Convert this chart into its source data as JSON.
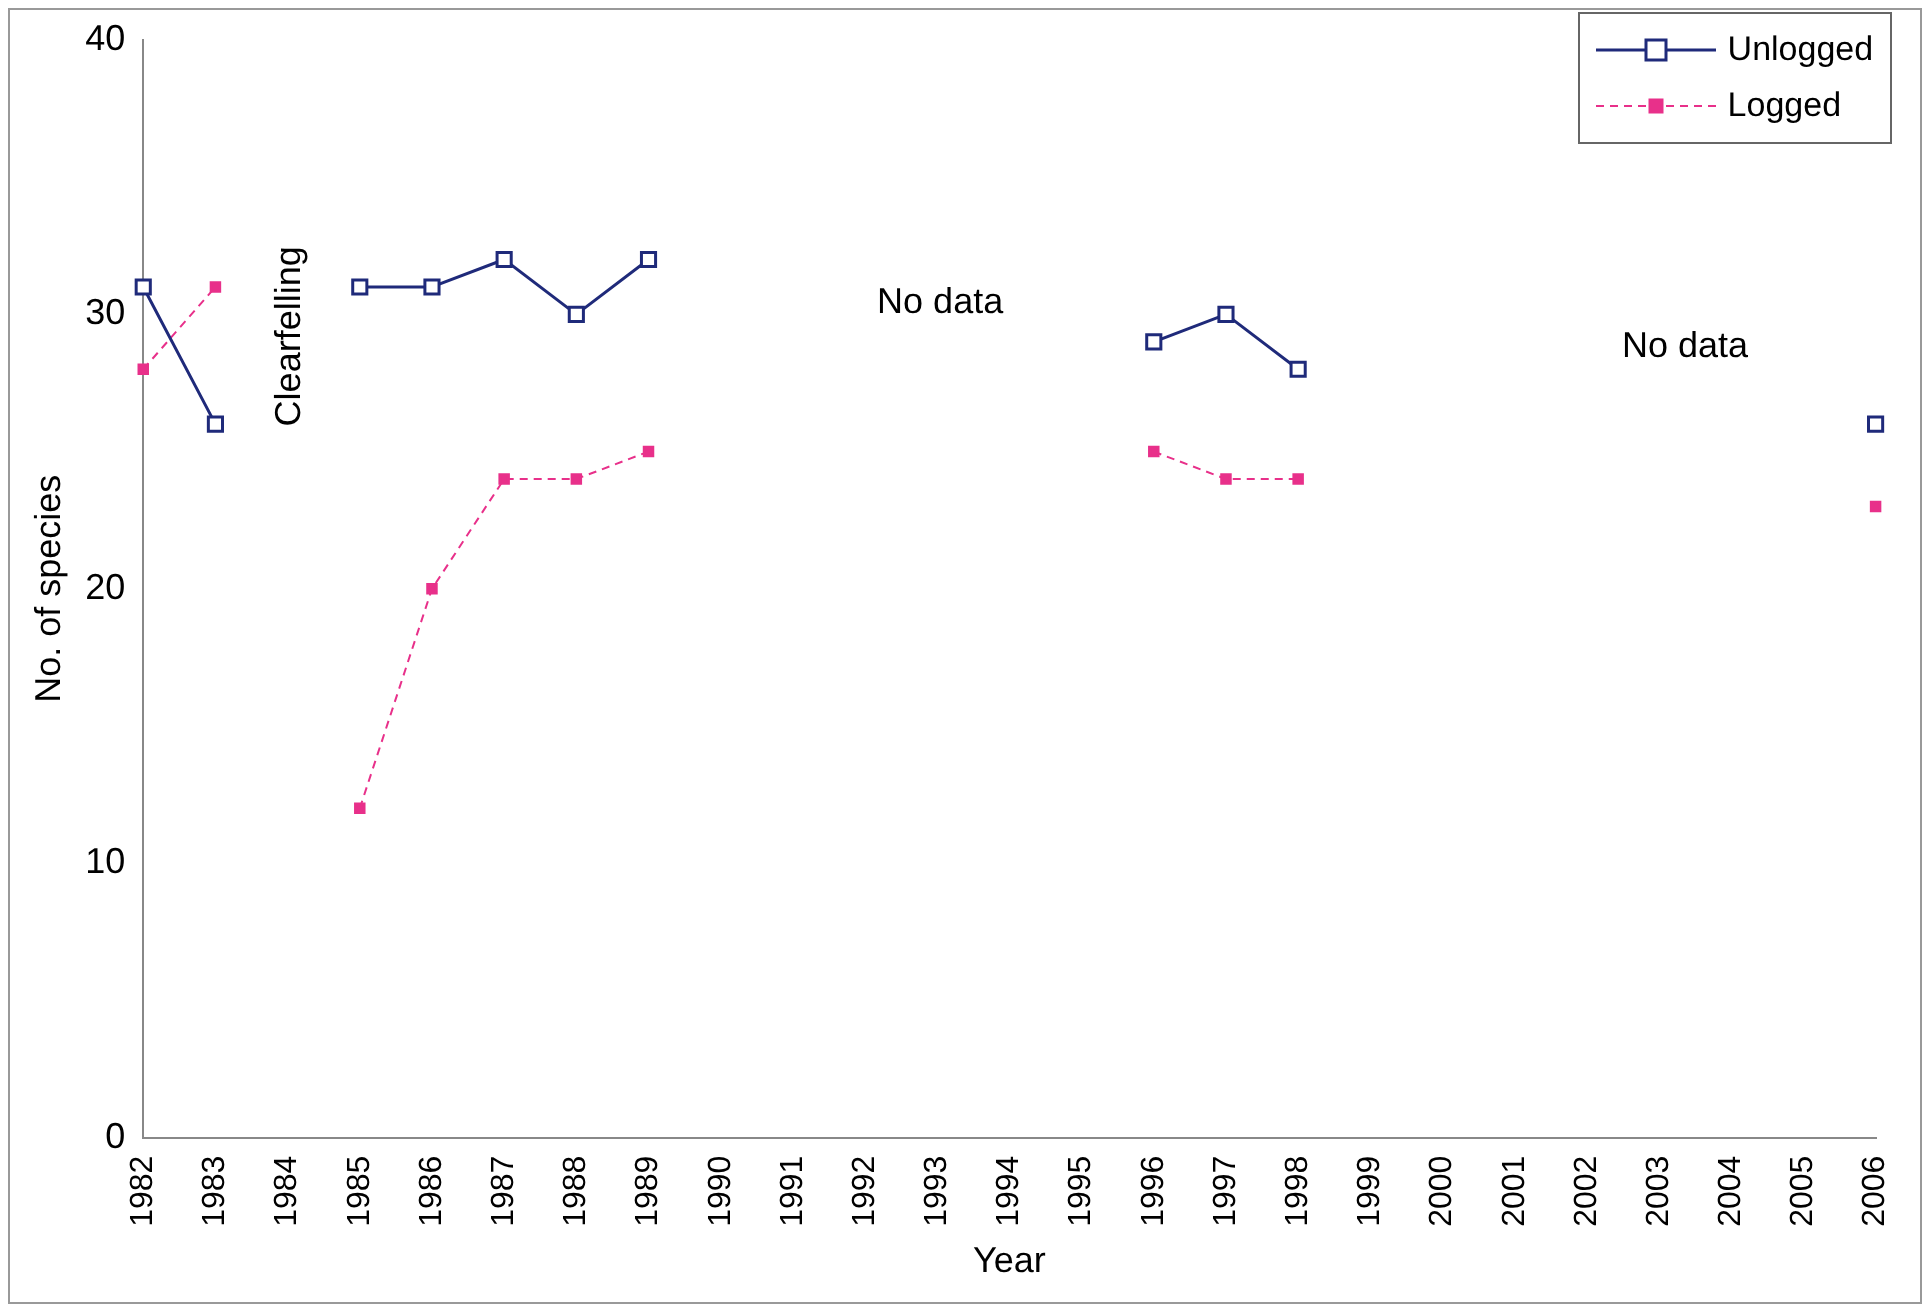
{
  "chart_data": {
    "type": "line",
    "xlabel": "Year",
    "ylabel": "No. of species",
    "categories": [
      "1982",
      "1983",
      "1984",
      "1985",
      "1986",
      "1987",
      "1988",
      "1989",
      "1990",
      "1991",
      "1992",
      "1993",
      "1994",
      "1995",
      "1996",
      "1997",
      "1998",
      "1999",
      "2000",
      "2001",
      "2002",
      "2003",
      "2004",
      "2005",
      "2006"
    ],
    "series": [
      {
        "name": "Unlogged",
        "color": "#1f2a7a",
        "marker": "square",
        "line_style": "solid",
        "values": [
          31,
          26,
          null,
          31,
          31,
          32,
          30,
          32,
          null,
          null,
          null,
          null,
          null,
          null,
          29,
          30,
          28,
          null,
          null,
          null,
          null,
          null,
          null,
          null,
          26
        ]
      },
      {
        "name": "Logged",
        "color": "#e8308a",
        "marker": "square",
        "line_style": "dashed",
        "values": [
          28,
          31,
          null,
          12,
          20,
          24,
          24,
          25,
          null,
          null,
          null,
          null,
          null,
          null,
          25,
          24,
          24,
          null,
          null,
          null,
          null,
          null,
          null,
          null,
          23
        ]
      }
    ],
    "ylim": [
      0,
      40
    ],
    "yticks": [
      0,
      10,
      20,
      30,
      40
    ],
    "grid": false,
    "legend": "top right",
    "annotations": [
      "Clearfelling",
      "No data",
      "No data"
    ]
  }
}
